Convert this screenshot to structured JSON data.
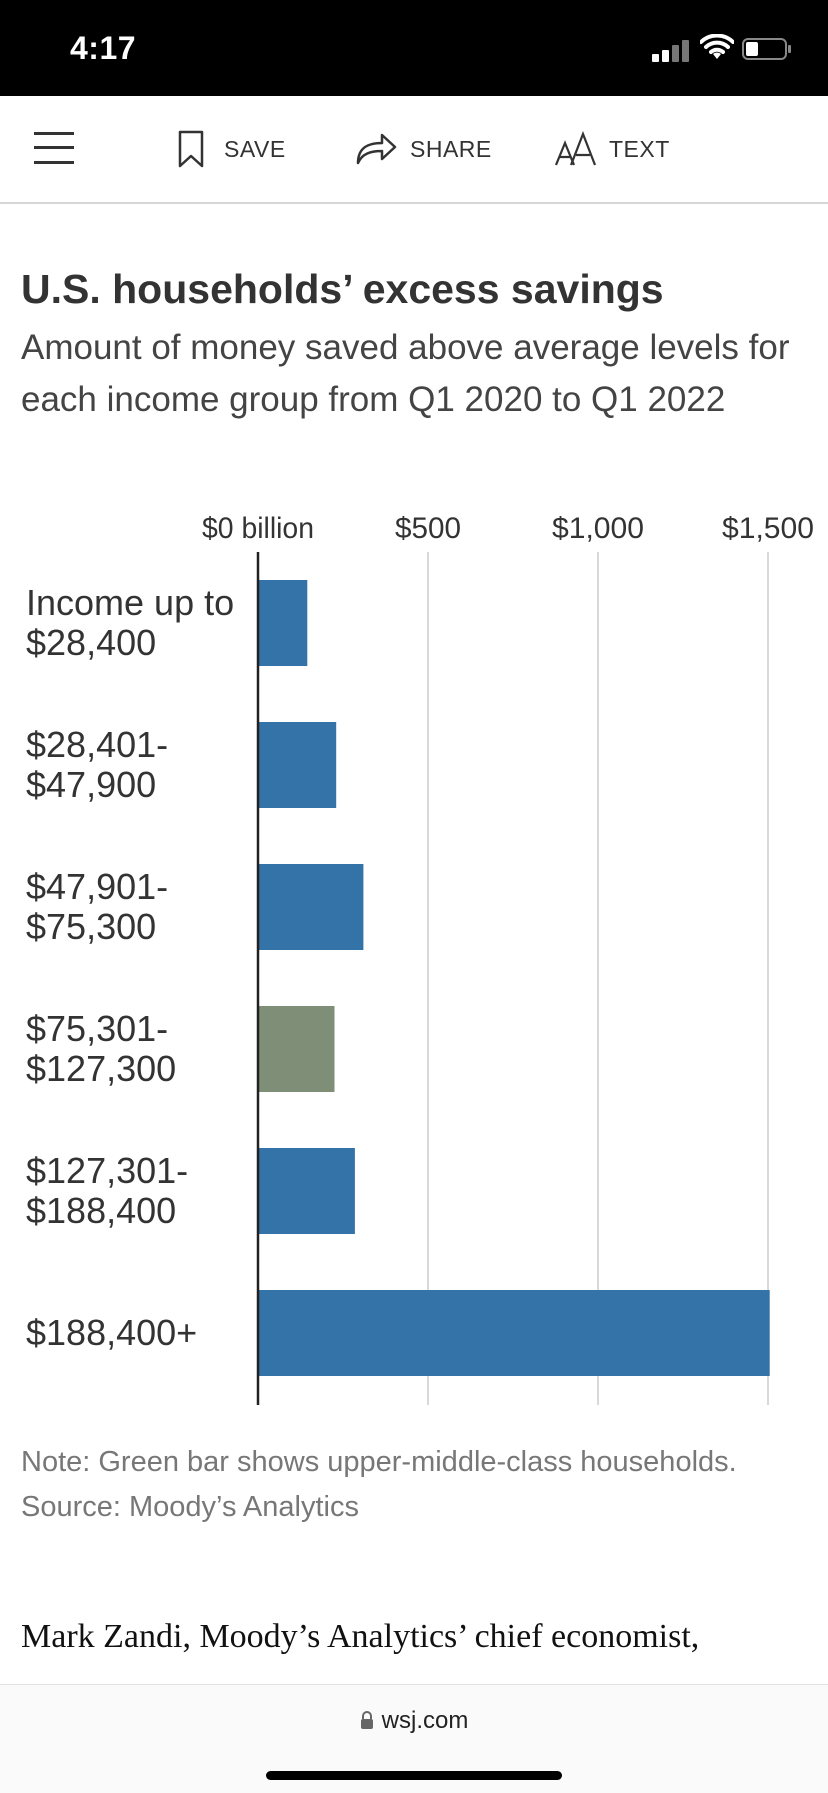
{
  "status_bar": {
    "time": "4:17"
  },
  "toolbar": {
    "save_label": "SAVE",
    "share_label": "SHARE",
    "text_label": "TEXT"
  },
  "article": {
    "note": "Note: Green bar shows upper-middle-class households.",
    "source": "Source: Moody’s Analytics",
    "body_text": "Mark Zandi, Moody’s Analytics’ chief economist,"
  },
  "browser": {
    "url": "wsj.com"
  },
  "chart_data": {
    "type": "bar",
    "orientation": "horizontal",
    "title": "U.S. households’ excess savings",
    "subtitle": "Amount of money saved above average levels for each income group from Q1 2020 to Q1 2022",
    "unit": "billion",
    "categories": [
      [
        "Income up to",
        "$28,400"
      ],
      [
        "$28,401-",
        "$47,900"
      ],
      [
        "$47,901-",
        "$75,300"
      ],
      [
        "$75,301-",
        "$127,300"
      ],
      [
        "$127,301-",
        "$188,400"
      ],
      [
        "$188,400+"
      ]
    ],
    "values": [
      145,
      230,
      310,
      225,
      285,
      1505
    ],
    "bar_colors": [
      "#3473a8",
      "#3473a8",
      "#3473a8",
      "#7f8f77",
      "#3473a8",
      "#3473a8"
    ],
    "xlim": [
      0,
      1650
    ],
    "x_ticks": [
      0,
      500,
      1000,
      1500
    ],
    "x_tick_labels": [
      "$0 billion",
      "$500",
      "$1,000",
      "$1,500"
    ],
    "grid": true,
    "colors": {
      "blue": "#3473a8",
      "green": "#7f8f77",
      "grid": "#d9d9d9",
      "axis": "#222222"
    }
  }
}
